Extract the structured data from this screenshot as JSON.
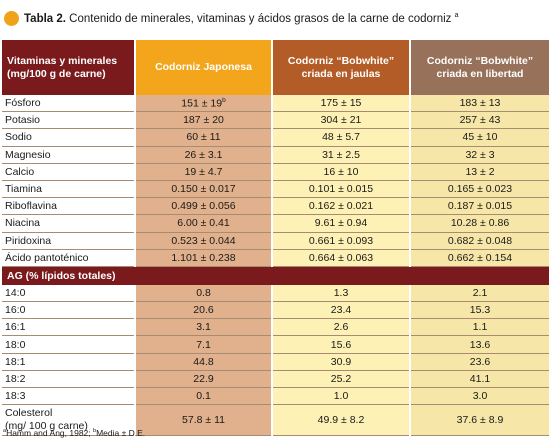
{
  "title": {
    "label": "Tabla 2.",
    "text": "Contenido de minerales, vitaminas y ácidos grasos de la carne de codorniz",
    "superscript": "a"
  },
  "header": {
    "col0": "Vitaminas y minerales (mg/100 g de carne)",
    "col1": "Codorniz Japonesa",
    "col2": "Codorniz “Bobwhite” criada en jaulas",
    "col3": "Codorniz “Bobwhite” criada en libertad"
  },
  "minerals_rows": [
    {
      "label": "Fósforo",
      "v1": "151 ± 19",
      "v1_sup": "b",
      "v2": "175 ± 15",
      "v3": "183 ± 13"
    },
    {
      "label": "Potasio",
      "v1": "187 ± 20",
      "v2": "304 ± 21",
      "v3": "257 ± 43"
    },
    {
      "label": "Sodio",
      "v1": "60 ± 11",
      "v2": "48 ± 5.7",
      "v3": "45 ± 10"
    },
    {
      "label": "Magnesio",
      "v1": "26 ± 3.1",
      "v2": "31 ± 2.5",
      "v3": "32 ± 3"
    },
    {
      "label": "Calcio",
      "v1": "19 ± 4.7",
      "v2": "16 ± 10",
      "v3": "13 ± 2"
    },
    {
      "label": "Tiamina",
      "v1": "0.150 ± 0.017",
      "v2": "0.101 ± 0.015",
      "v3": "0.165 ± 0.023"
    },
    {
      "label": "Riboflavina",
      "v1": "0.499 ± 0.056",
      "v2": "0.162 ± 0.021",
      "v3": "0.187 ± 0.015"
    },
    {
      "label": "Niacina",
      "v1": "6.00 ± 0.41",
      "v2": "9.61 ± 0.94",
      "v3": "10.28 ± 0.86"
    },
    {
      "label": "Piridoxina",
      "v1": "0.523 ± 0.044",
      "v2": "0.661 ± 0.093",
      "v3": "0.682 ± 0.048"
    },
    {
      "label": "Ácido pantoténico",
      "v1": "1.101 ± 0.238",
      "v2": "0.664 ± 0.063",
      "v3": "0.662 ± 0.154"
    }
  ],
  "ag_section": {
    "label": "AG (% lípidos totales)"
  },
  "ag_rows": [
    {
      "label": "14:0",
      "v1": "0.8",
      "v2": "1.3",
      "v3": "2.1"
    },
    {
      "label": "16:0",
      "v1": "20.6",
      "v2": "23.4",
      "v3": "15.3"
    },
    {
      "label": "16:1",
      "v1": "3.1",
      "v2": "2.6",
      "v3": "1.1"
    },
    {
      "label": "18:0",
      "v1": "7.1",
      "v2": "15.6",
      "v3": "13.6"
    },
    {
      "label": "18:1",
      "v1": "44.8",
      "v2": "30.9",
      "v3": "23.6"
    },
    {
      "label": "18:2",
      "v1": "22.9",
      "v2": "25.2",
      "v3": "41.1"
    },
    {
      "label": "18:3",
      "v1": "0.1",
      "v2": "1.0",
      "v3": "3.0"
    }
  ],
  "colesterol_row": {
    "label_line1": "Colesterol",
    "label_line2": "(mg/ 100 g carne)",
    "v1": "57.8 ± 11",
    "v2": "49.9 ± 8.2",
    "v3": "37.6 ± 8.9"
  },
  "footnote": {
    "sup_a": "a",
    "text_a": "Hamm and Ang, 1982; ",
    "sup_b": "b",
    "text_b": "Media ± D.E."
  },
  "colors": {
    "title_dot": "#f1a21b",
    "header_dark": "#7a1a1c",
    "header_orange": "#f3a51c",
    "header_rust": "#b45c28",
    "header_brown": "#977159",
    "col1_bg": "#e0b18c",
    "col2_bg": "#fdf1b5",
    "col3_bg": "#f6e6a8"
  }
}
